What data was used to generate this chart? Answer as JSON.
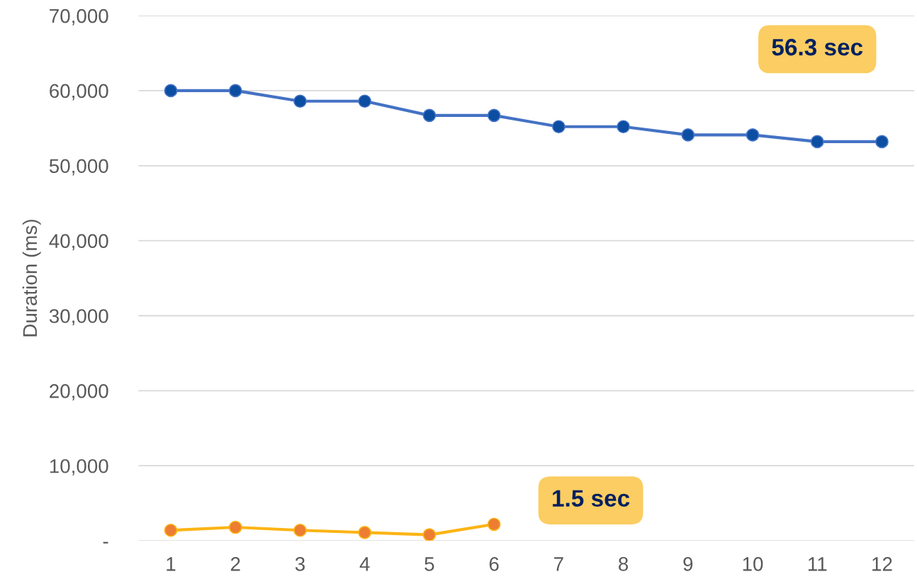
{
  "chart_data": {
    "type": "line",
    "ylabel": "Duration (ms)",
    "x": [
      1,
      2,
      3,
      4,
      5,
      6,
      7,
      8,
      9,
      10,
      11,
      12
    ],
    "series": [
      {
        "color": "#4472c4",
        "colors": [
          "#0b4ea2",
          "#0b4ea2",
          "#0b4ea2",
          "#0b4ea2",
          "#0b4ea2",
          "#0b4ea2",
          "#0b4ea2",
          "#0b4ea2",
          "#0b4ea2",
          "#0b4ea2",
          "#0b4ea2",
          "#0b4ea2"
        ],
        "values": [
          60000,
          60000,
          58600,
          58600,
          56700,
          56700,
          55200,
          55200,
          54100,
          54100,
          53200,
          53200
        ]
      },
      {
        "color": "#fcb414",
        "colors": [
          "#ed7d31",
          "#ed7d31",
          "#ed7d31",
          "#ed7d31",
          "#ed7d31",
          "#ed7d31",
          null,
          null,
          null,
          null,
          null,
          null
        ],
        "values": [
          1400,
          1800,
          1400,
          1100,
          800,
          2200,
          null,
          null,
          null,
          null,
          null,
          null
        ]
      }
    ],
    "xlim": [
      0.5,
      12.5
    ],
    "xticks": [
      1,
      2,
      3,
      4,
      5,
      6,
      7,
      8,
      9,
      10,
      11,
      12
    ],
    "ylim": [
      0,
      70000
    ],
    "yticks": [
      {
        "value": 0,
        "label": "-"
      },
      {
        "value": 10000,
        "label": "10,000"
      },
      {
        "value": 20000,
        "label": "20,000"
      },
      {
        "value": 30000,
        "label": "30,000"
      },
      {
        "value": 40000,
        "label": "40,000"
      },
      {
        "value": 50000,
        "label": "50,000"
      },
      {
        "value": 60000,
        "label": "60,000"
      },
      {
        "value": 70000,
        "label": "70,000"
      }
    ],
    "grid": "y",
    "marker": "circle",
    "line_style": "solid",
    "annotations": [
      "56.3 sec",
      "1.5 sec"
    ]
  }
}
